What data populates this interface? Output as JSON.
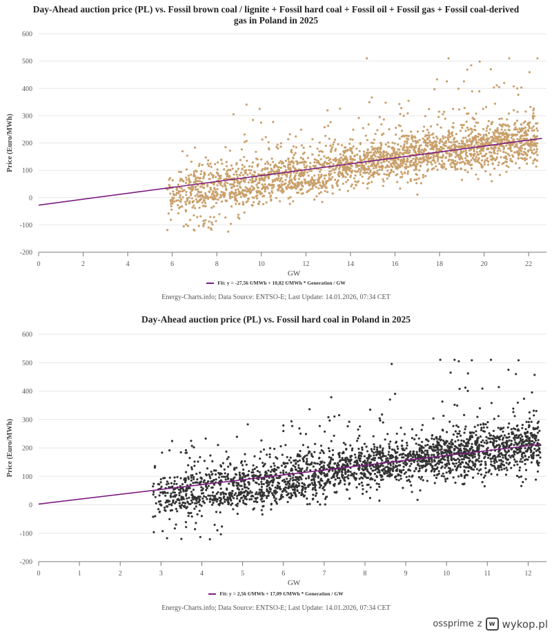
{
  "chart_data": [
    {
      "type": "scatter",
      "title": "Day-Ahead auction price (PL) vs. Fossil brown coal / lignite + Fossil hard coal + Fossil oil + Fossil gas + Fossil coal-derived gas in Poland in 2025",
      "xlabel": "GW",
      "ylabel": "Price (Euro/MWh)",
      "xlim": [
        0,
        22.8
      ],
      "ylim": [
        -200,
        600
      ],
      "x_ticks": [
        "0",
        "2",
        "4",
        "6",
        "8",
        "10",
        "12",
        "14",
        "16",
        "18",
        "20",
        "22"
      ],
      "x_tick_values": [
        0,
        2,
        4,
        6,
        8,
        10,
        12,
        14,
        16,
        18,
        20,
        22
      ],
      "y_ticks": [
        "600",
        "500",
        "400",
        "300",
        "200",
        "100",
        "0",
        "-100",
        "-200"
      ],
      "y_tick_values": [
        600,
        500,
        400,
        300,
        200,
        100,
        0,
        -100,
        -200
      ],
      "grid": true,
      "point_color": "#c9a06b",
      "fit_color": "#7b1a7f",
      "fit": {
        "intercept": -27.56,
        "slope": 10.82,
        "x_range": [
          0,
          22.6
        ]
      },
      "legend": "Fit: y = -27,56 €/MWh + 10,82 €/MWh * Generation / GW",
      "legend_position": "bottom-center",
      "scatter_cloud": {
        "x_range": [
          5.7,
          22.4
        ],
        "y_min": -130,
        "y_max": 510,
        "n_points_sample": 2600
      },
      "sample_points": [
        [
          6.0,
          0
        ],
        [
          7.0,
          -120
        ],
        [
          8.0,
          60
        ],
        [
          10.0,
          80
        ],
        [
          12.0,
          110
        ],
        [
          14.0,
          140
        ],
        [
          16.0,
          150
        ],
        [
          18.0,
          170
        ],
        [
          19.8,
          498
        ],
        [
          20.3,
          470
        ],
        [
          20.9,
          420
        ],
        [
          22.4,
          245
        ]
      ]
    },
    {
      "type": "scatter",
      "title": "Day-Ahead auction price (PL) vs. Fossil hard coal in Poland in 2025",
      "xlabel": "GW",
      "ylabel": "Price (Euro/MWh)",
      "xlim": [
        0,
        12.45
      ],
      "ylim": [
        -200,
        600
      ],
      "x_ticks": [
        "0",
        "1",
        "2",
        "3",
        "4",
        "5",
        "6",
        "7",
        "8",
        "9",
        "10",
        "11",
        "12"
      ],
      "x_tick_values": [
        0,
        1,
        2,
        3,
        4,
        5,
        6,
        7,
        8,
        9,
        10,
        11,
        12
      ],
      "y_ticks": [
        "600",
        "500",
        "400",
        "300",
        "200",
        "100",
        "0",
        "-100",
        "-200"
      ],
      "y_tick_values": [
        600,
        500,
        400,
        300,
        200,
        100,
        0,
        -100,
        -200
      ],
      "grid": true,
      "point_color": "#333333",
      "fit_color": "#7b1a7f",
      "fit": {
        "intercept": 2.56,
        "slope": 17.09,
        "x_range": [
          0,
          12.3
        ]
      },
      "legend": "Fit: y = 2,56 €/MWh + 17,09 €/MWh * Generation / GW",
      "legend_position": "bottom-center",
      "scatter_cloud": {
        "x_range": [
          2.8,
          12.3
        ],
        "y_min": -130,
        "y_max": 510,
        "n_points_sample": 2600
      },
      "sample_points": [
        [
          3.0,
          90
        ],
        [
          3.5,
          -120
        ],
        [
          4.0,
          40
        ],
        [
          5.0,
          110
        ],
        [
          6.0,
          120
        ],
        [
          7.0,
          130
        ],
        [
          8.0,
          140
        ],
        [
          9.0,
          150
        ],
        [
          10.3,
          505
        ],
        [
          10.1,
          465
        ],
        [
          11.7,
          460
        ],
        [
          12.2,
          330
        ]
      ]
    }
  ],
  "credit": "Energy-Charts.info; Data Source: ENTSO-E; Last Update: 14.01.2026, 07:34 CET",
  "watermark": {
    "user": "ossprime",
    "joiner": "z",
    "site": "wykop.pl",
    "logo_glyph": "w"
  }
}
